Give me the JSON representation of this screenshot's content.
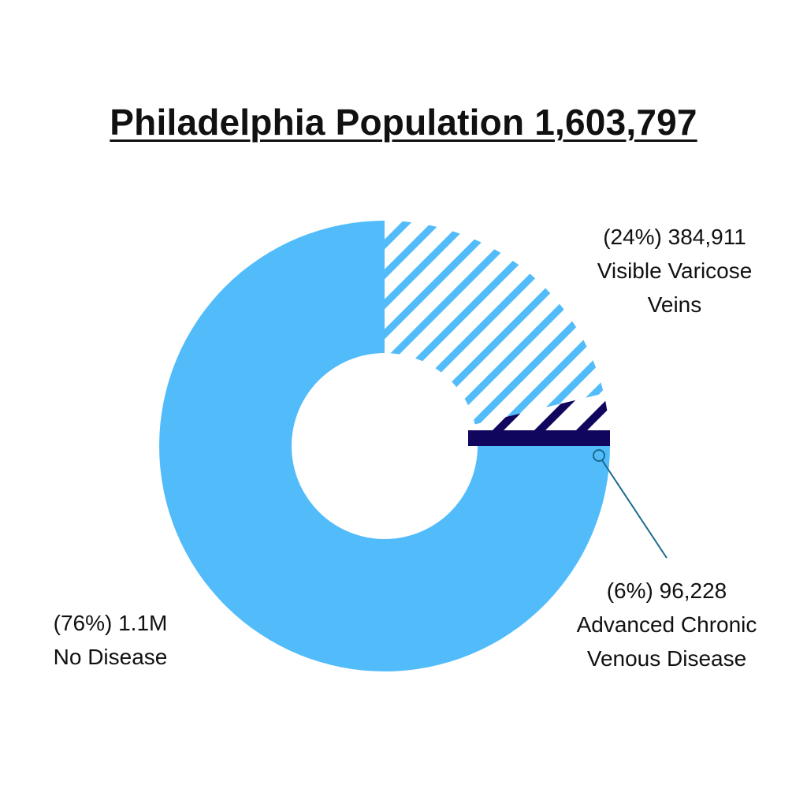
{
  "chart_data": {
    "type": "pie",
    "style": "donut",
    "title": "Philadelphia Population 1,603,797",
    "total": 1603797,
    "slices": [
      {
        "key": "visible",
        "pct_text": "(24%) 384,911",
        "label_lines": [
          "Visible Varicose",
          "Veins"
        ],
        "value": 384911,
        "percent": 24,
        "fill": "hatched",
        "color": "#52bcfa"
      },
      {
        "key": "advanced",
        "pct_text": "(6%) 96,228",
        "label_lines": [
          "Advanced Chronic",
          "Venous Disease"
        ],
        "value": 96228,
        "percent": 6,
        "fill": "hatched",
        "color": "#10065e"
      },
      {
        "key": "none",
        "pct_text": "(76%) 1.1M",
        "label_lines": [
          "No Disease"
        ],
        "percent": 76,
        "fill": "solid",
        "color": "#52bcfa"
      }
    ]
  }
}
